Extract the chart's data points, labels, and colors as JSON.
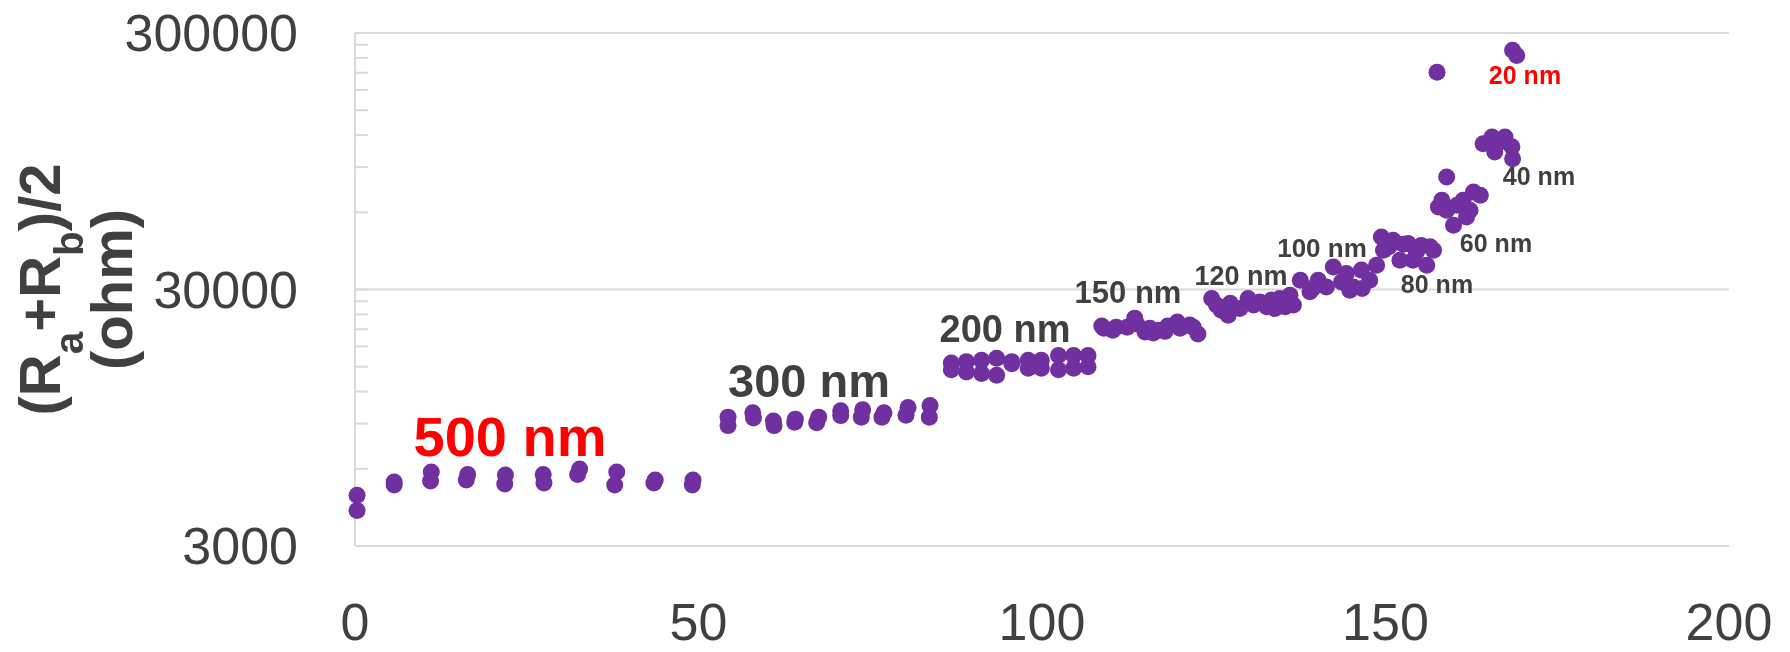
{
  "chart_data": {
    "type": "scatter",
    "ylabel": "(R$_{a}$+R$_{b}$)/2\n(ohm)",
    "log": "y",
    "grid": "y",
    "marker": "circle",
    "color": "#7030a0",
    "xlim": [
      0,
      200
    ],
    "xticks": [
      0,
      50,
      100,
      150,
      200
    ],
    "ylim": [
      3000,
      300000
    ],
    "yticks": [
      3000,
      {
        "value": 6000,
        "label": null
      },
      {
        "value": 9000,
        "label": null
      },
      {
        "value": 12000,
        "label": null
      },
      {
        "value": 15000,
        "label": null
      },
      {
        "value": 18000,
        "label": null
      },
      {
        "value": 21000,
        "label": null
      },
      {
        "value": 24000,
        "label": null
      },
      {
        "value": 27000,
        "label": null
      },
      30000,
      {
        "value": 60000,
        "label": null
      },
      {
        "value": 90000,
        "label": null
      },
      {
        "value": 120000,
        "label": null
      },
      {
        "value": 150000,
        "label": null
      },
      {
        "value": 180000,
        "label": null
      },
      {
        "value": 210000,
        "label": null
      },
      {
        "value": 240000,
        "label": null
      },
      {
        "value": 270000,
        "label": null
      },
      300000
    ],
    "x": [
      0.3,
      0.3,
      5.7,
      5.7,
      11.1,
      11.0,
      16.4,
      16.2,
      21.9,
      21.8,
      27.4,
      27.5,
      32.7,
      32.4,
      38.1,
      37.8,
      43.7,
      43.5,
      49.2,
      49.1,
      54.3,
      54.3,
      57.9,
      58.0,
      60.9,
      61.0,
      64.1,
      64.0,
      67.5,
      67.2,
      70.7,
      70.7,
      73.9,
      73.7,
      77.0,
      76.7,
      80.5,
      80.2,
      83.7,
      83.6,
      86.8,
      86.8,
      89.0,
      89.0,
      91.2,
      91.2,
      93.4,
      93.4,
      95.6,
      95.6,
      98.0,
      98.0,
      99.9,
      99.9,
      102.4,
      102.4,
      104.6,
      104.6,
      106.7,
      106.7,
      108.7,
      109.0,
      110.3,
      110.8,
      112.4,
      113.5,
      113.8,
      115.0,
      115.7,
      116.2,
      116.9,
      117.9,
      118.3,
      119.7,
      120.1,
      121.5,
      122.0,
      122.7,
      124.7,
      125.4,
      126.1,
      127.1,
      127.4,
      128.8,
      130.0,
      130.8,
      131.7,
      132.7,
      133.4,
      133.9,
      134.6,
      135.4,
      136.1,
      136.6,
      137.6,
      139.0,
      139.4,
      140.2,
      141.4,
      142.4,
      143.6,
      144.3,
      144.8,
      145.3,
      146.5,
      146.6,
      147.7,
      148.7,
      149.4,
      149.7,
      150.5,
      151.1,
      152.1,
      152.6,
      153.3,
      154.0,
      154.5,
      155.2,
      156.0,
      156.5,
      157.0,
      157.7,
      158.2,
      158.9,
      159.9,
      160.4,
      161.3,
      161.8,
      162.3,
      162.8,
      163.8,
      158.9,
      164.2,
      165.5,
      165.9,
      166.5,
      167.4,
      168.4,
      168.5,
      157.5,
      168.5,
      169.1
    ],
    "values": [
      4730,
      4130,
      5330,
      5190,
      5830,
      5380,
      5700,
      5420,
      5670,
      5230,
      5700,
      5280,
      5990,
      5700,
      5830,
      5190,
      5420,
      5280,
      5420,
      5190,
      9540,
      8840,
      9930,
      9460,
      9210,
      8840,
      9370,
      9120,
      9540,
      9080,
      10100,
      9670,
      10200,
      9540,
      9930,
      9540,
      10400,
      9710,
      10600,
      9540,
      15500,
      14600,
      15700,
      14300,
      15900,
      14100,
      16200,
      13900,
      15700,
      15400,
      15900,
      14800,
      15900,
      14800,
      16600,
      14600,
      16600,
      14800,
      16600,
      15000,
      21600,
      21200,
      20800,
      21400,
      21400,
      23200,
      22000,
      20500,
      21200,
      20300,
      20800,
      20600,
      21600,
      22400,
      21200,
      21800,
      21400,
      20100,
      27700,
      26100,
      24900,
      23800,
      26500,
      25300,
      27700,
      26100,
      26800,
      25700,
      27300,
      25300,
      27700,
      25700,
      28500,
      26100,
      32600,
      29400,
      30300,
      32600,
      30700,
      36700,
      32100,
      34600,
      29800,
      30700,
      35700,
      30300,
      32600,
      37300,
      48100,
      42700,
      44000,
      46700,
      39000,
      45000,
      45300,
      39000,
      42000,
      44500,
      37300,
      44000,
      42700,
      62900,
      66800,
      61100,
      53400,
      63900,
      66800,
      57500,
      61100,
      72000,
      69900,
      82400,
      111000,
      118000,
      103000,
      112000,
      118000,
      108000,
      97100,
      211000,
      257000,
      245000
    ],
    "annotations": [
      "500 nm",
      "300 nm",
      "200 nm",
      "150 nm",
      "120 nm",
      "100 nm",
      "80 nm",
      "60 nm",
      "40 nm",
      "20 nm"
    ]
  }
}
